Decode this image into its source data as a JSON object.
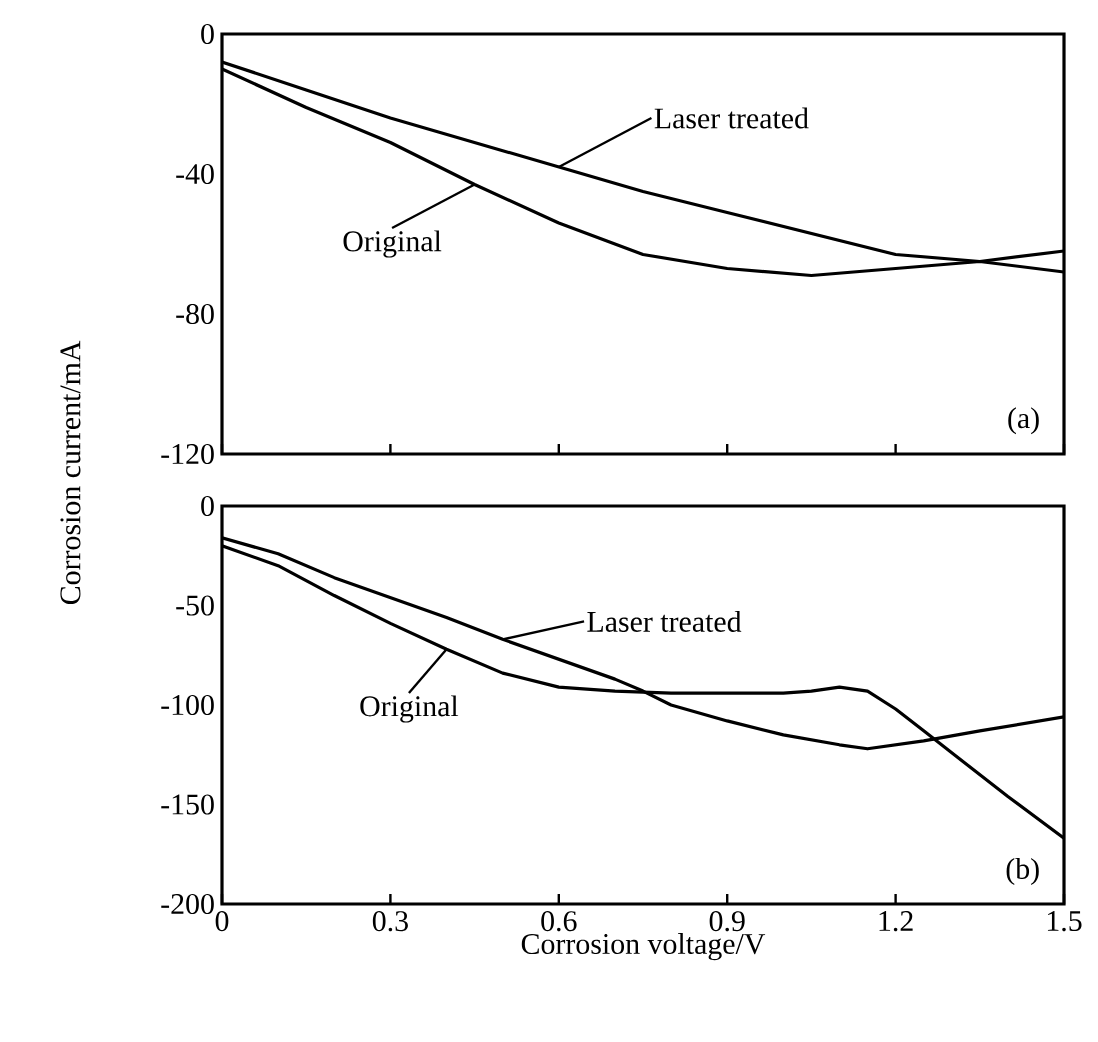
{
  "chart_data": [
    {
      "type": "line",
      "ylabel": "Corrosion current/mA",
      "annotations": [
        "(a)"
      ],
      "xlim": [
        0,
        1.5
      ],
      "xticks": [
        0,
        0.3,
        0.6,
        0.9,
        1.2,
        1.5
      ],
      "ylim": [
        -120,
        0
      ],
      "yticks": [
        -120,
        -80,
        -40,
        0
      ],
      "tick_labels": "y",
      "x": [
        0,
        0.15,
        0.3,
        0.45,
        0.6,
        0.75,
        0.9,
        1.05,
        1.2,
        1.35,
        1.5
      ],
      "series": [
        {
          "name": "Laser treated",
          "color": "#000000",
          "values": [
            -8,
            -16,
            -24,
            -31,
            -38,
            -45,
            -51,
            -57,
            -63,
            -65,
            -62
          ]
        },
        {
          "name": "Original",
          "color": "#000000",
          "values": [
            -10,
            -21,
            -31,
            -43,
            -54,
            -63,
            -67,
            -69,
            -67,
            -65,
            -68
          ]
        }
      ]
    },
    {
      "type": "line",
      "xlabel": "Corrosion voltage/V",
      "annotations": [
        "(b)"
      ],
      "xlim": [
        0,
        1.5
      ],
      "xticks": [
        0,
        0.3,
        0.6,
        0.9,
        1.2,
        1.5
      ],
      "ylim": [
        -200,
        0
      ],
      "yticks": [
        -200,
        -150,
        -100,
        -50,
        0
      ],
      "series": [
        {
          "name": "Laser treated",
          "color": "#000000",
          "x": [
            0,
            0.1,
            0.2,
            0.3,
            0.4,
            0.5,
            0.6,
            0.7,
            0.75,
            0.8,
            0.9,
            1.0,
            1.1,
            1.15,
            1.25,
            1.35,
            1.5
          ],
          "values": [
            -16,
            -24,
            -36,
            -46,
            -56,
            -67,
            -77,
            -87,
            -93,
            -100,
            -108,
            -115,
            -120,
            -122,
            -118,
            -113,
            -106
          ]
        },
        {
          "name": "Original",
          "color": "#000000",
          "x": [
            0,
            0.1,
            0.2,
            0.3,
            0.4,
            0.5,
            0.6,
            0.7,
            0.8,
            0.9,
            1.0,
            1.05,
            1.1,
            1.15,
            1.2,
            1.25,
            1.3,
            1.4,
            1.5
          ],
          "values": [
            -20,
            -30,
            -45,
            -59,
            -72,
            -84,
            -91,
            -93,
            -94,
            -94,
            -94,
            -93,
            -91,
            -93,
            -102,
            -113,
            -124,
            -146,
            -167
          ]
        }
      ]
    }
  ]
}
